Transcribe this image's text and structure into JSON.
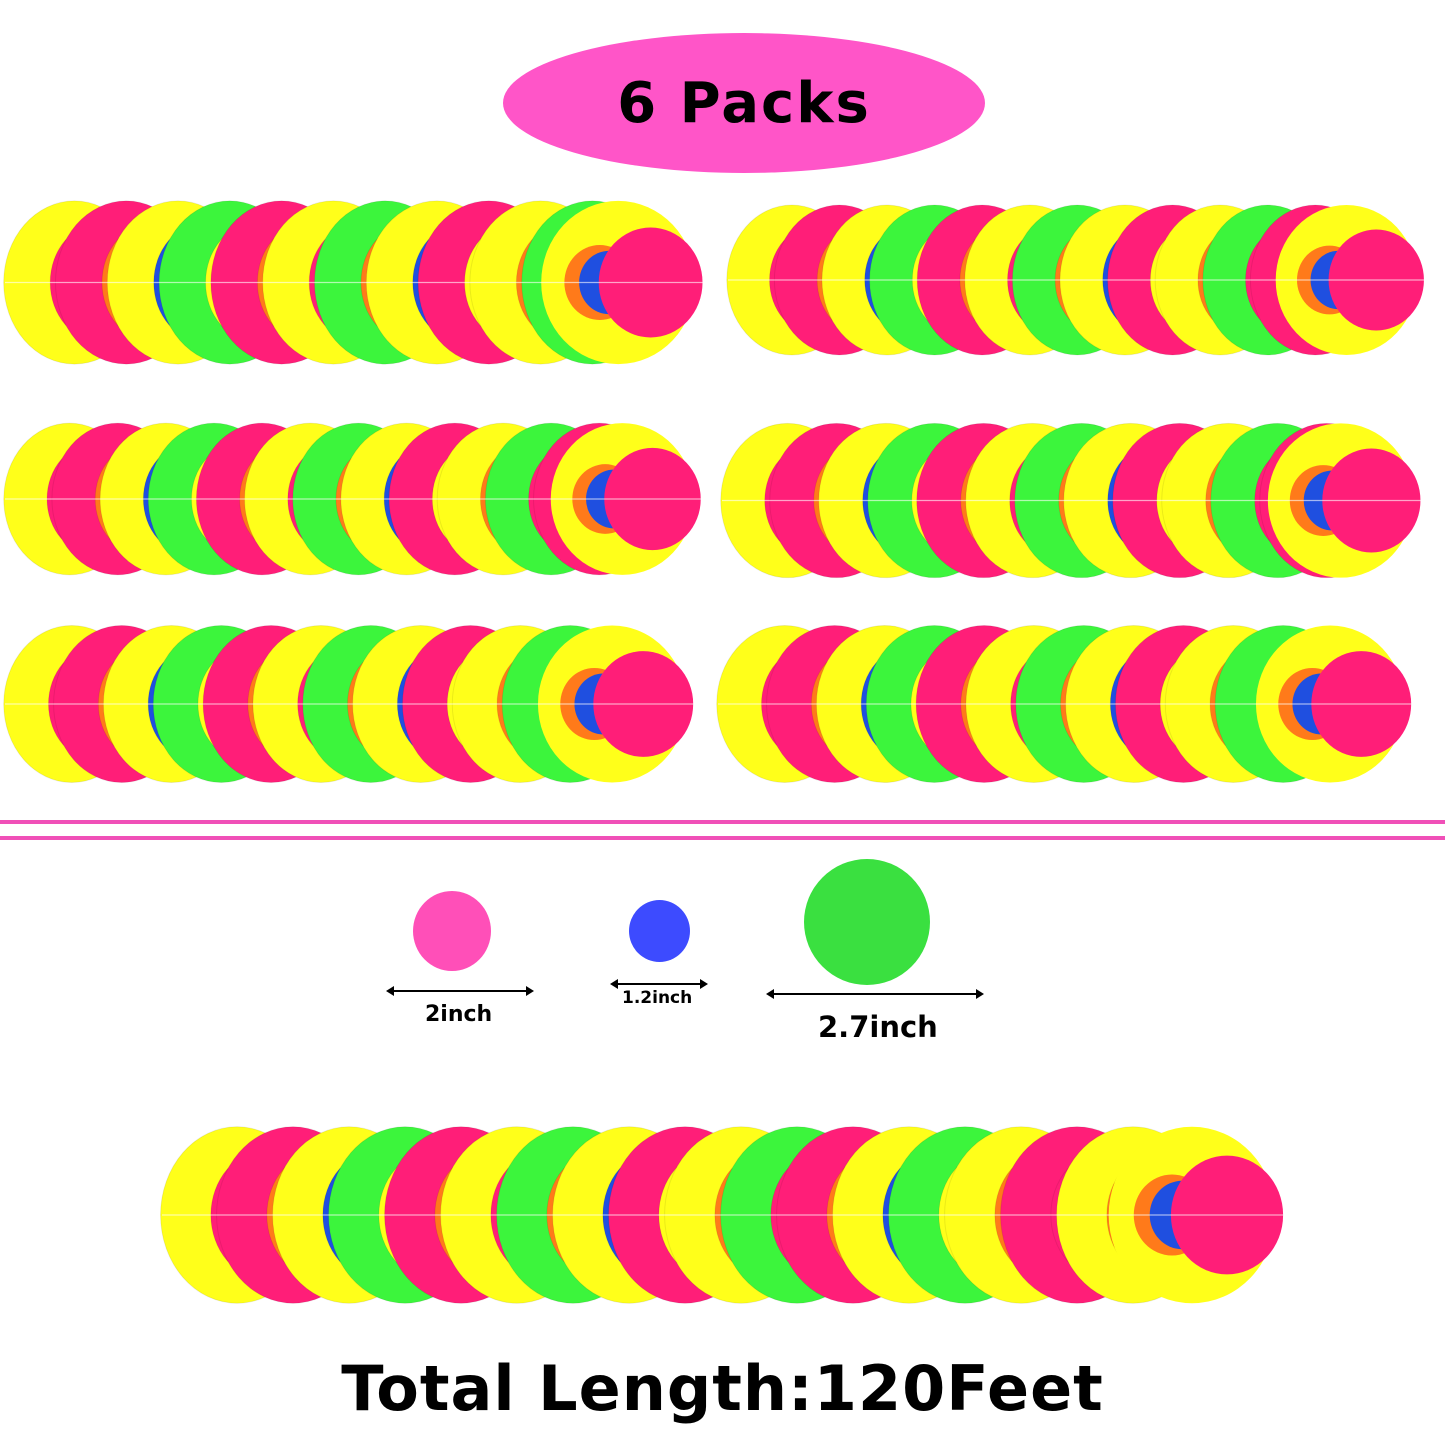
{
  "header": {
    "label": "6 Packs",
    "badge_color": "#ff55c8"
  },
  "garlands": {
    "pack_count": 6,
    "colors": {
      "pink": "#ff1e78",
      "yellow": "#ffff1a",
      "green": "#3cf53c",
      "blue": "#1f4fe0",
      "orange": "#ff7a1a"
    }
  },
  "divider_color": "#f050b8",
  "sizes": [
    {
      "label": "2inch",
      "color": "#ff4fb8"
    },
    {
      "label": "1.2inch",
      "color": "#3d4bff"
    },
    {
      "label": "2.7inch",
      "color": "#3ae040"
    }
  ],
  "footer": {
    "total_length": "Total  Length:120Feet"
  }
}
